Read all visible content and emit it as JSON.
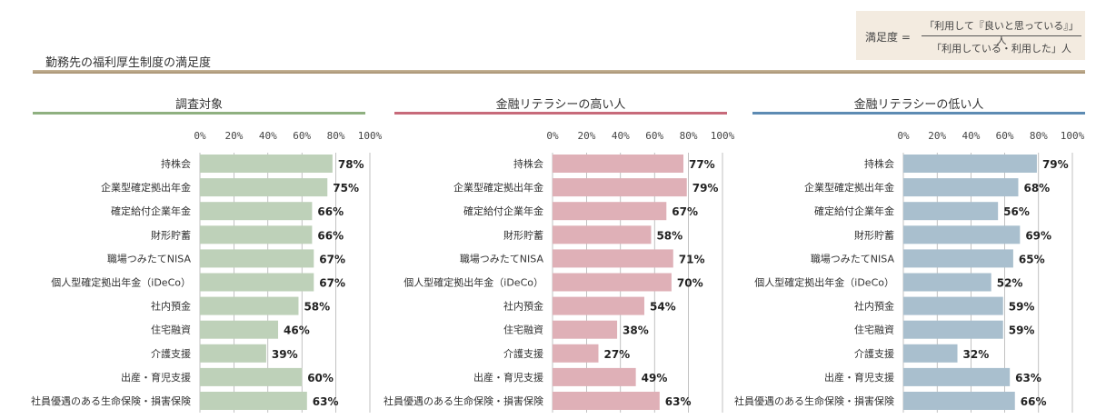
{
  "formula": {
    "lhs": "満足度 =",
    "numerator": "「利用して『良いと思っている』」人",
    "denominator": "「利用している・利用した」人"
  },
  "page_title": "勤務先の福利厚生制度の満足度",
  "colors": {
    "panel1": "#bed1b9",
    "panel1_rule": "#8fb080",
    "panel2": "#dfb0b7",
    "panel2_rule": "#c76a7a",
    "panel3": "#a9bfce",
    "panel3_rule": "#5d8bb3",
    "grid": "#999999",
    "title_rule": "#b09b78"
  },
  "chart_data": [
    {
      "type": "bar",
      "orientation": "horizontal",
      "title": "調査対象",
      "categories": [
        "持株会",
        "企業型確定拠出年金",
        "確定給付企業年金",
        "財形貯蓄",
        "職場つみたてNISA",
        "個人型確定拠出年金（iDeCo）",
        "社内預金",
        "住宅融資",
        "介護支援",
        "出産・育児支援",
        "社員優遇のある生命保険・損害保険"
      ],
      "values": [
        78,
        75,
        66,
        66,
        67,
        67,
        58,
        46,
        39,
        60,
        63
      ],
      "value_labels": [
        "78%",
        "75%",
        "66%",
        "66%",
        "67%",
        "67%",
        "58%",
        "46%",
        "39%",
        "60%",
        "63%"
      ],
      "xlim": [
        0,
        100
      ],
      "ticks": [
        "0%",
        "20%",
        "40%",
        "60%",
        "80%",
        "100%"
      ],
      "grid": true
    },
    {
      "type": "bar",
      "orientation": "horizontal",
      "title": "金融リテラシーの高い人",
      "categories": [
        "持株会",
        "企業型確定拠出年金",
        "確定給付企業年金",
        "財形貯蓄",
        "職場つみたてNISA",
        "個人型確定拠出年金（iDeCo）",
        "社内預金",
        "住宅融資",
        "介護支援",
        "出産・育児支援",
        "社員優遇のある生命保険・損害保険"
      ],
      "values": [
        77,
        79,
        67,
        58,
        71,
        70,
        54,
        38,
        27,
        49,
        63
      ],
      "value_labels": [
        "77%",
        "79%",
        "67%",
        "58%",
        "71%",
        "70%",
        "54%",
        "38%",
        "27%",
        "49%",
        "63%"
      ],
      "xlim": [
        0,
        100
      ],
      "ticks": [
        "0%",
        "20%",
        "40%",
        "60%",
        "80%",
        "100%"
      ],
      "grid": true
    },
    {
      "type": "bar",
      "orientation": "horizontal",
      "title": "金融リテラシーの低い人",
      "categories": [
        "持株会",
        "企業型確定拠出年金",
        "確定給付企業年金",
        "財形貯蓄",
        "職場つみたてNISA",
        "個人型確定拠出年金（iDeCo）",
        "社内預金",
        "住宅融資",
        "介護支援",
        "出産・育児支援",
        "社員優遇のある生命保険・損害保険"
      ],
      "values": [
        79,
        68,
        56,
        69,
        65,
        52,
        59,
        59,
        32,
        63,
        66
      ],
      "value_labels": [
        "79%",
        "68%",
        "56%",
        "69%",
        "65%",
        "52%",
        "59%",
        "59%",
        "32%",
        "63%",
        "66%"
      ],
      "xlim": [
        0,
        100
      ],
      "ticks": [
        "0%",
        "20%",
        "40%",
        "60%",
        "80%",
        "100%"
      ],
      "grid": true
    }
  ]
}
